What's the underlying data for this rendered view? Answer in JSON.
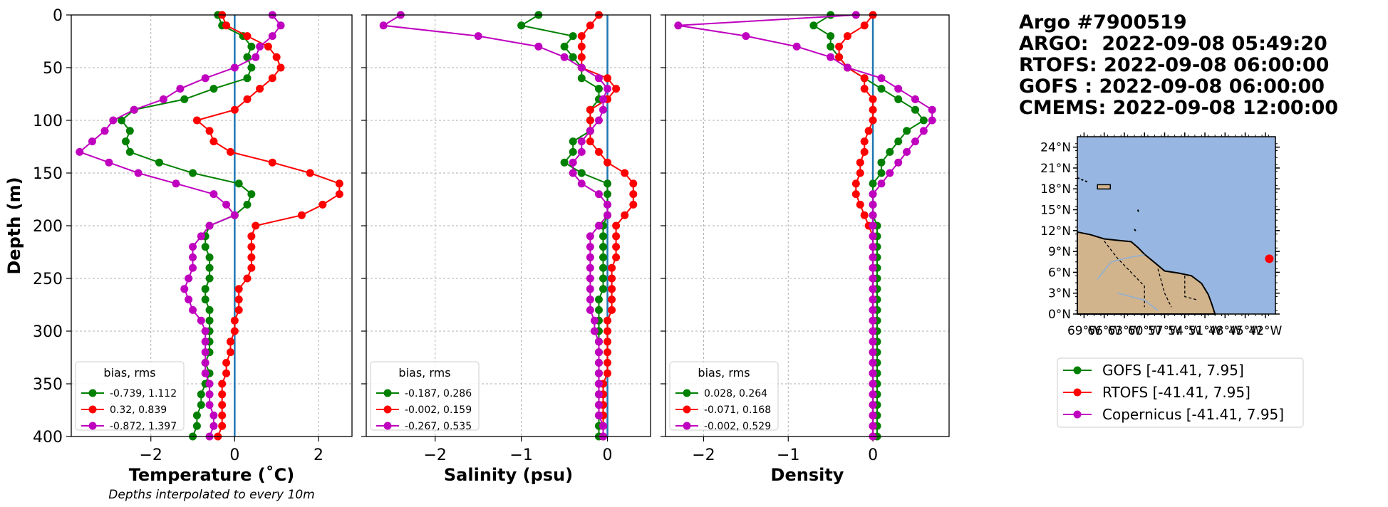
{
  "info": {
    "lines": [
      "Argo #7900519",
      "ARGO:  2022-09-08 05:49:20",
      "RTOFS: 2022-09-08 06:00:00",
      "GOFS : 2022-09-08 06:00:00",
      "CMEMS: 2022-09-08 12:00:00"
    ]
  },
  "colors": {
    "gofs": "#008000",
    "rtofs": "#ff0000",
    "copernicus": "#bf00bf",
    "zero_line": "#1f77b4",
    "ocean": "#97b6e1",
    "land": "#d2b48c"
  },
  "shared": {
    "ylabel": "Depth (m)",
    "ylim": [
      0,
      400
    ],
    "yticks": [
      "0",
      "50",
      "100",
      "150",
      "200",
      "250",
      "300",
      "350",
      "400"
    ],
    "legend_title": "bias, rms",
    "footnote": "Depths interpolated to every 10m"
  },
  "chart_data": [
    {
      "type": "line",
      "xlabel": "Temperature (˚C)",
      "xlim": [
        -3.9,
        2.8
      ],
      "xticks": [
        "−2",
        "0",
        "2"
      ],
      "depth": [
        0,
        10,
        20,
        30,
        40,
        50,
        60,
        70,
        80,
        90,
        100,
        110,
        120,
        130,
        140,
        150,
        160,
        170,
        180,
        190,
        200,
        210,
        220,
        230,
        240,
        250,
        260,
        270,
        280,
        290,
        300,
        310,
        320,
        330,
        340,
        350,
        360,
        370,
        380,
        390,
        400
      ],
      "series": [
        {
          "key": "gofs",
          "legend": "-0.739, 1.112",
          "values": [
            -0.4,
            -0.3,
            0.2,
            0.4,
            0.3,
            0.4,
            0.3,
            -0.5,
            -1.2,
            -2.4,
            -2.7,
            -2.5,
            -2.6,
            -2.5,
            -1.8,
            -1.0,
            0.1,
            0.4,
            0.3,
            0.0,
            -0.6,
            -0.7,
            -0.7,
            -0.6,
            -0.6,
            -0.6,
            -0.7,
            -0.7,
            -0.6,
            -0.6,
            -0.6,
            -0.6,
            -0.6,
            -0.7,
            -0.6,
            -0.7,
            -0.8,
            -0.8,
            -0.9,
            -0.9,
            -1.0
          ]
        },
        {
          "key": "rtofs",
          "legend": "0.32, 0.839",
          "values": [
            -0.3,
            -0.2,
            0.3,
            0.8,
            1.0,
            1.1,
            0.9,
            0.6,
            0.3,
            0.0,
            -0.9,
            -0.6,
            -0.5,
            -0.1,
            0.9,
            1.8,
            2.5,
            2.5,
            2.1,
            1.6,
            0.5,
            0.4,
            0.4,
            0.4,
            0.4,
            0.3,
            0.1,
            0.1,
            0.1,
            0.0,
            0.0,
            -0.1,
            -0.1,
            -0.2,
            -0.2,
            -0.3,
            -0.3,
            -0.3,
            -0.3,
            -0.3,
            -0.4
          ]
        },
        {
          "key": "copernicus",
          "legend": "-0.872, 1.397",
          "values": [
            0.9,
            1.1,
            0.9,
            0.6,
            0.5,
            0.0,
            -0.7,
            -1.3,
            -1.7,
            -2.4,
            -2.9,
            -3.1,
            -3.4,
            -3.7,
            -3.0,
            -2.3,
            -1.4,
            -0.5,
            -0.2,
            0.0,
            -0.6,
            -0.8,
            -1.0,
            -1.0,
            -1.0,
            -1.1,
            -1.2,
            -1.1,
            -1.0,
            -0.8,
            -0.7,
            -0.7,
            -0.7,
            -0.7,
            -0.7,
            -0.6,
            -0.6,
            -0.6,
            -0.5,
            -0.5,
            -0.6
          ]
        }
      ]
    },
    {
      "type": "line",
      "xlabel": "Salinity (psu)",
      "xlim": [
        -2.8,
        0.5
      ],
      "xticks": [
        "−2",
        "−1",
        "0"
      ],
      "depth": [
        0,
        10,
        20,
        30,
        40,
        50,
        60,
        70,
        80,
        90,
        100,
        110,
        120,
        130,
        140,
        150,
        160,
        170,
        180,
        190,
        200,
        210,
        220,
        230,
        240,
        250,
        260,
        270,
        280,
        290,
        300,
        310,
        320,
        330,
        340,
        350,
        360,
        370,
        380,
        390,
        400
      ],
      "series": [
        {
          "key": "gofs",
          "legend": "-0.187, 0.286",
          "values": [
            -0.8,
            -1.0,
            -0.4,
            -0.5,
            -0.4,
            -0.3,
            -0.3,
            -0.1,
            -0.1,
            -0.2,
            -0.2,
            -0.2,
            -0.4,
            -0.4,
            -0.5,
            -0.3,
            0.0,
            0.0,
            0.0,
            0.0,
            -0.05,
            -0.05,
            -0.05,
            -0.05,
            -0.05,
            -0.05,
            -0.05,
            -0.1,
            -0.1,
            -0.1,
            -0.1,
            -0.1,
            -0.1,
            -0.1,
            -0.1,
            -0.1,
            -0.1,
            -0.1,
            -0.1,
            -0.1,
            -0.1
          ]
        },
        {
          "key": "rtofs",
          "legend": "-0.002, 0.159",
          "values": [
            -0.1,
            -0.2,
            -0.3,
            -0.3,
            -0.3,
            -0.3,
            0.0,
            0.1,
            0.0,
            -0.2,
            -0.2,
            -0.2,
            -0.2,
            -0.1,
            0.0,
            0.2,
            0.3,
            0.3,
            0.3,
            0.2,
            0.1,
            0.1,
            0.1,
            0.1,
            0.05,
            0.05,
            0.05,
            0.05,
            0.05,
            0.0,
            0.0,
            0.0,
            0.0,
            0.0,
            0.0,
            -0.05,
            -0.05,
            -0.05,
            -0.05,
            -0.05,
            -0.05
          ]
        },
        {
          "key": "copernicus",
          "legend": "-0.267, 0.535",
          "values": [
            -2.4,
            -2.6,
            -1.5,
            -0.8,
            -0.5,
            -0.3,
            -0.1,
            0.0,
            -0.05,
            -0.05,
            -0.1,
            -0.2,
            -0.3,
            -0.3,
            -0.4,
            -0.4,
            -0.3,
            -0.1,
            0.0,
            0.0,
            -0.1,
            -0.2,
            -0.2,
            -0.2,
            -0.2,
            -0.2,
            -0.2,
            -0.2,
            -0.2,
            -0.15,
            -0.15,
            -0.1,
            -0.1,
            -0.1,
            -0.1,
            -0.1,
            -0.1,
            -0.1,
            -0.1,
            -0.05,
            -0.05
          ]
        }
      ]
    },
    {
      "type": "line",
      "xlabel": "Density",
      "xlim": [
        -2.45,
        0.9
      ],
      "xticks": [
        "−2",
        "−1",
        "0"
      ],
      "depth": [
        0,
        10,
        20,
        30,
        40,
        50,
        60,
        70,
        80,
        90,
        100,
        110,
        120,
        130,
        140,
        150,
        160,
        170,
        180,
        190,
        200,
        210,
        220,
        230,
        240,
        250,
        260,
        270,
        280,
        290,
        300,
        310,
        320,
        330,
        340,
        350,
        360,
        370,
        380,
        390,
        400
      ],
      "series": [
        {
          "key": "gofs",
          "legend": "0.028, 0.264",
          "values": [
            -0.5,
            -0.7,
            -0.5,
            -0.5,
            -0.4,
            -0.3,
            -0.1,
            0.1,
            0.3,
            0.5,
            0.6,
            0.4,
            0.3,
            0.2,
            0.1,
            0.1,
            0.0,
            0.0,
            0.0,
            0.0,
            0.05,
            0.05,
            0.05,
            0.05,
            0.05,
            0.05,
            0.05,
            0.05,
            0.05,
            0.05,
            0.05,
            0.05,
            0.05,
            0.05,
            0.05,
            0.05,
            0.05,
            0.05,
            0.05,
            0.05,
            0.05
          ]
        },
        {
          "key": "rtofs",
          "legend": "-0.071, 0.168",
          "values": [
            0.0,
            -0.1,
            -0.3,
            -0.4,
            -0.4,
            -0.3,
            -0.1,
            -0.1,
            0.0,
            0.0,
            0.0,
            -0.05,
            -0.1,
            -0.1,
            -0.15,
            -0.15,
            -0.2,
            -0.2,
            -0.15,
            -0.1,
            -0.05,
            0.0,
            0.0,
            0.0,
            0.0,
            0.0,
            0.0,
            0.0,
            0.0,
            0.0,
            0.0,
            0.0,
            0.0,
            0.0,
            0.0,
            0.0,
            0.0,
            0.0,
            0.0,
            0.0,
            0.0
          ]
        },
        {
          "key": "copernicus",
          "legend": "-0.002, 0.529",
          "values": [
            -0.2,
            -2.3,
            -1.5,
            -0.9,
            -0.5,
            -0.3,
            0.1,
            0.3,
            0.5,
            0.7,
            0.7,
            0.6,
            0.5,
            0.4,
            0.3,
            0.2,
            0.1,
            0.0,
            0.0,
            0.0,
            0.0,
            0.0,
            0.0,
            0.0,
            0.0,
            0.0,
            0.0,
            0.0,
            0.0,
            0.0,
            0.0,
            0.0,
            0.0,
            0.0,
            0.0,
            0.0,
            0.0,
            0.0,
            0.0,
            0.0,
            0.0
          ]
        }
      ]
    }
  ],
  "map": {
    "lat_labels": [
      "24°N",
      "21°N",
      "18°N",
      "15°N",
      "12°N",
      "9°N",
      "6°N",
      "3°N",
      "0°N"
    ],
    "lon_labels": [
      "69°W",
      "66°W",
      "63°W",
      "60°W",
      "57°W",
      "54°W",
      "51°W",
      "48°W",
      "45°W",
      "42°W"
    ],
    "marker": {
      "lon": -41.41,
      "lat": 7.95
    }
  },
  "main_legend": [
    {
      "key": "gofs",
      "label": "GOFS [-41.41, 7.95]"
    },
    {
      "key": "rtofs",
      "label": "RTOFS [-41.41, 7.95]"
    },
    {
      "key": "copernicus",
      "label": "Copernicus [-41.41, 7.95]"
    }
  ]
}
